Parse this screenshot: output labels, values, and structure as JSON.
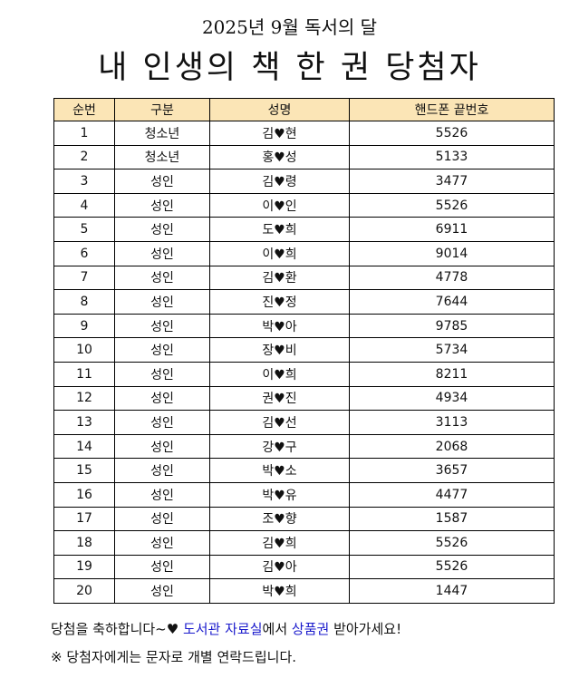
{
  "subtitle": "2025년 9월 독서의 달",
  "title": "내 인생의 책 한 권 당첨자",
  "headers": [
    "순번",
    "구분",
    "성명",
    "핸드폰 끝번호"
  ],
  "rows": [
    [
      "1",
      "청소년",
      "김♥현",
      "5526"
    ],
    [
      "2",
      "청소년",
      "홍♥성",
      "5133"
    ],
    [
      "3",
      "성인",
      "김♥령",
      "3477"
    ],
    [
      "4",
      "성인",
      "이♥인",
      "5526"
    ],
    [
      "5",
      "성인",
      "도♥희",
      "6911"
    ],
    [
      "6",
      "성인",
      "이♥희",
      "9014"
    ],
    [
      "7",
      "성인",
      "김♥환",
      "4778"
    ],
    [
      "8",
      "성인",
      "진♥정",
      "7644"
    ],
    [
      "9",
      "성인",
      "박♥아",
      "9785"
    ],
    [
      "10",
      "성인",
      "장♥비",
      "5734"
    ],
    [
      "11",
      "성인",
      "이♥희",
      "8211"
    ],
    [
      "12",
      "성인",
      "권♥진",
      "4934"
    ],
    [
      "13",
      "성인",
      "김♥선",
      "3113"
    ],
    [
      "14",
      "성인",
      "강♥구",
      "2068"
    ],
    [
      "15",
      "성인",
      "박♥소",
      "3657"
    ],
    [
      "16",
      "성인",
      "박♥유",
      "4477"
    ],
    [
      "17",
      "성인",
      "조♥향",
      "1587"
    ],
    [
      "18",
      "성인",
      "김♥희",
      "5526"
    ],
    [
      "19",
      "성인",
      "김♥아",
      "5526"
    ],
    [
      "20",
      "성인",
      "박♥희",
      "1447"
    ]
  ],
  "footer": {
    "p1": "당첨을 축하합니다~♥ ",
    "p2": "도서관 자료실",
    "p3": "에서 ",
    "p4": "상품권",
    "p5": " 받아가세요!",
    "note": "※ 당첨자에게는 문자로 개별 연락드립니다."
  },
  "colors": {
    "header_bg": "#fbe5b6",
    "highlight": "#1a1acc"
  }
}
